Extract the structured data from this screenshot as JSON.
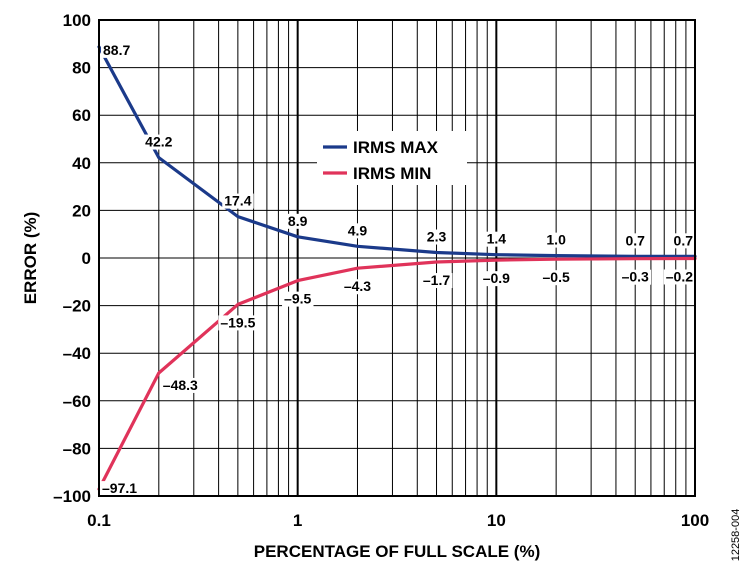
{
  "figure_id": "12258-004",
  "chart_data": {
    "type": "line",
    "title": "",
    "xlabel": "PERCENTAGE OF FULL SCALE (%)",
    "ylabel": "ERROR (%)",
    "xscale": "log",
    "xlim": [
      0.1,
      100
    ],
    "ylim": [
      -100,
      100
    ],
    "grid": true,
    "legend_position": "center",
    "x_ticks": [
      "0.1",
      "1",
      "10",
      "100"
    ],
    "y_ticks": [
      "100",
      "80",
      "60",
      "40",
      "20",
      "0",
      "–20",
      "–40",
      "–60",
      "–80",
      "–100"
    ],
    "x": [
      0.1,
      0.2,
      0.5,
      1,
      2,
      5,
      10,
      20,
      50,
      100
    ],
    "series": [
      {
        "name": "IRMS MAX",
        "color": "#1b3a8a",
        "values": [
          88.7,
          42.2,
          17.4,
          8.9,
          4.9,
          2.3,
          1.4,
          1.0,
          0.7,
          0.7
        ],
        "labels": [
          "88.7",
          "42.2",
          "17.4",
          "8.9",
          "4.9",
          "2.3",
          "1.4",
          "1.0",
          "0.7",
          "0.7"
        ]
      },
      {
        "name": "IRMS MIN",
        "color": "#e0335a",
        "values": [
          -97.1,
          -48.3,
          -19.5,
          -9.5,
          -4.3,
          -1.7,
          -0.9,
          -0.5,
          -0.3,
          -0.2
        ],
        "labels": [
          "–97.1",
          "–48.3",
          "–19.5",
          "–9.5",
          "–4.3",
          "–1.7",
          "–0.9",
          "–0.5",
          "–0.3",
          "–0.2"
        ]
      }
    ]
  }
}
